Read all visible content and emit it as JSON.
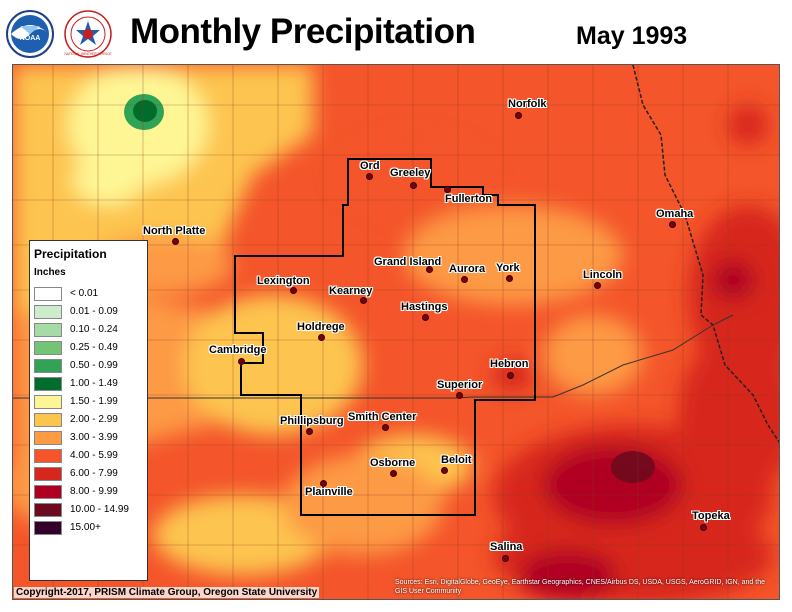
{
  "header": {
    "title": "Monthly Precipitation",
    "date": "May 1993"
  },
  "logos": {
    "noaa": {
      "icon": "noaa-logo-icon",
      "text": "NOAA"
    },
    "nws": {
      "icon": "nws-logo-icon",
      "text": "NATIONAL WEATHER SERVICE"
    }
  },
  "legend": {
    "title": "Precipitation",
    "units": "Inches",
    "items": [
      {
        "label": "< 0.01",
        "color": "#ffffff"
      },
      {
        "label": "0.01 - 0.09",
        "color": "#cdeccd"
      },
      {
        "label": "0.10 - 0.24",
        "color": "#a6dba6"
      },
      {
        "label": "0.25 - 0.49",
        "color": "#74c476"
      },
      {
        "label": "0.50 - 0.99",
        "color": "#31a354"
      },
      {
        "label": "1.00 - 1.49",
        "color": "#006d2c"
      },
      {
        "label": "1.50 - 1.99",
        "color": "#fef694"
      },
      {
        "label": "2.00 - 2.99",
        "color": "#fdc44f"
      },
      {
        "label": "3.00 - 3.99",
        "color": "#fd9a44"
      },
      {
        "label": "4.00 - 5.99",
        "color": "#f4552a"
      },
      {
        "label": "6.00 - 7.99",
        "color": "#d7261e"
      },
      {
        "label": "8.00 - 9.99",
        "color": "#b00020"
      },
      {
        "label": "10.00 - 14.99",
        "color": "#6e0a1e"
      },
      {
        "label": "15.00+",
        "color": "#33002a"
      }
    ]
  },
  "cities": [
    {
      "name": "Norfolk"
    },
    {
      "name": "Ord"
    },
    {
      "name": "Greeley"
    },
    {
      "name": "Fullerton"
    },
    {
      "name": "North Platte"
    },
    {
      "name": "Omaha"
    },
    {
      "name": "Grand Island"
    },
    {
      "name": "Aurora"
    },
    {
      "name": "York"
    },
    {
      "name": "Lincoln"
    },
    {
      "name": "Lexington"
    },
    {
      "name": "Kearney"
    },
    {
      "name": "Hastings"
    },
    {
      "name": "Holdrege"
    },
    {
      "name": "Cambridge"
    },
    {
      "name": "Hebron"
    },
    {
      "name": "Superior"
    },
    {
      "name": "Phillipsburg"
    },
    {
      "name": "Smith Center"
    },
    {
      "name": "Osborne"
    },
    {
      "name": "Beloit"
    },
    {
      "name": "Plainville"
    },
    {
      "name": "Topeka"
    },
    {
      "name": "Salina"
    }
  ],
  "footer": {
    "copyright": "Copyright-2017, PRISM Climate Group, Oregon State University",
    "source": "Sources: Esri, DigitalGlobe, GeoEye, Earthstar Geographics, CNES/Airbus DS, USDA, USGS, AeroGRID, IGN, and the GIS User Community"
  }
}
